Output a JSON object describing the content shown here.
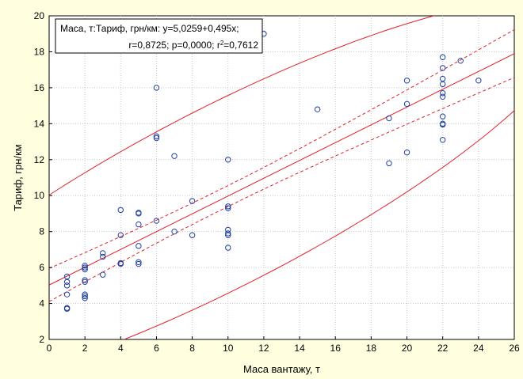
{
  "chart_data": {
    "type": "scatter",
    "title": "",
    "xlabel": "Маса вантажу, т",
    "ylabel": "Тариф, грн/км",
    "xlim": [
      0,
      26
    ],
    "ylim": [
      2,
      20
    ],
    "xticks": [
      0,
      2,
      4,
      6,
      8,
      10,
      12,
      14,
      16,
      18,
      20,
      22,
      24,
      26
    ],
    "yticks": [
      2,
      4,
      6,
      8,
      10,
      12,
      14,
      16,
      18,
      20
    ],
    "grid": true,
    "annotation": {
      "line1": "Маса, т:Тариф, грн/км: y=5,0259+0,495x;",
      "line2_a": "r=0,8725; p=0,0000; r",
      "line2_sup": "2",
      "line2_b": "=0,7612"
    },
    "regression": {
      "intercept": 5.0259,
      "slope": 0.495
    },
    "colors": {
      "points": "#1f3fa0",
      "lines": "#e0202a",
      "background": "#ffffe0"
    },
    "points": [
      [
        1,
        3.7
      ],
      [
        1,
        3.75
      ],
      [
        1,
        4.5
      ],
      [
        1,
        5.0
      ],
      [
        1,
        5.2
      ],
      [
        1,
        5.5
      ],
      [
        2,
        4.3
      ],
      [
        2,
        4.4
      ],
      [
        2,
        4.5
      ],
      [
        2,
        5.2
      ],
      [
        2,
        5.3
      ],
      [
        2,
        5.9
      ],
      [
        2,
        6.0
      ],
      [
        2,
        6.1
      ],
      [
        3,
        5.6
      ],
      [
        3,
        6.6
      ],
      [
        3,
        6.8
      ],
      [
        4,
        6.2
      ],
      [
        4,
        6.25
      ],
      [
        4,
        7.8
      ],
      [
        4,
        9.2
      ],
      [
        5,
        6.2
      ],
      [
        5,
        6.3
      ],
      [
        5,
        7.2
      ],
      [
        5,
        8.4
      ],
      [
        5,
        9.0
      ],
      [
        5,
        9.05
      ],
      [
        6,
        8.6
      ],
      [
        6,
        13.2
      ],
      [
        6,
        13.3
      ],
      [
        6,
        16.0
      ],
      [
        7,
        8.0
      ],
      [
        7,
        12.2
      ],
      [
        8,
        7.8
      ],
      [
        8,
        9.7
      ],
      [
        10,
        7.1
      ],
      [
        10,
        7.8
      ],
      [
        10,
        7.9
      ],
      [
        10,
        8.1
      ],
      [
        10,
        9.3
      ],
      [
        10,
        9.4
      ],
      [
        10,
        12.0
      ],
      [
        12,
        19.0
      ],
      [
        15,
        14.8
      ],
      [
        19,
        11.8
      ],
      [
        19,
        14.3
      ],
      [
        20,
        12.4
      ],
      [
        20,
        15.1
      ],
      [
        20,
        16.4
      ],
      [
        22,
        13.1
      ],
      [
        22,
        13.95
      ],
      [
        22,
        14.0
      ],
      [
        22,
        14.4
      ],
      [
        22,
        15.5
      ],
      [
        22,
        15.7
      ],
      [
        22,
        16.2
      ],
      [
        22,
        16.5
      ],
      [
        22,
        17.1
      ],
      [
        22,
        17.7
      ],
      [
        23,
        17.5
      ],
      [
        24,
        16.4
      ]
    ]
  }
}
